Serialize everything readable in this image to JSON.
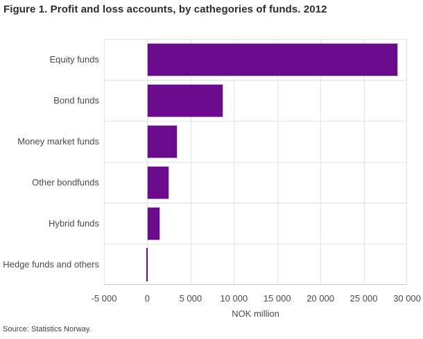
{
  "page": {
    "source": "Source: Statistics Norway."
  },
  "chart_data": {
    "type": "bar",
    "orientation": "horizontal",
    "title": "Figure 1. Profit and loss accounts, by cathegories of funds. 2012",
    "categories": [
      "Equity funds",
      "Bond funds",
      "Money market funds",
      "Other bondfunds",
      "Hybrid funds",
      "Hedge funds and others"
    ],
    "values": [
      29000,
      8800,
      3500,
      2550,
      1500,
      -100
    ],
    "xlabel": "NOK million",
    "xlim": [
      -5000,
      30000
    ],
    "xticks": [
      -5000,
      0,
      5000,
      10000,
      15000,
      20000,
      25000,
      30000
    ],
    "xtick_labels": [
      "-5 000",
      "0",
      "5 000",
      "10 000",
      "15 000",
      "20 000",
      "25 000",
      "30 000"
    ],
    "grid": true,
    "legend": "none",
    "colors": {
      "bar": "#6b0a8c",
      "grid": "#e4e4e4",
      "axis_line": "#cccccc",
      "text": "#4a4a4a",
      "title": "#2b2b2b"
    }
  }
}
